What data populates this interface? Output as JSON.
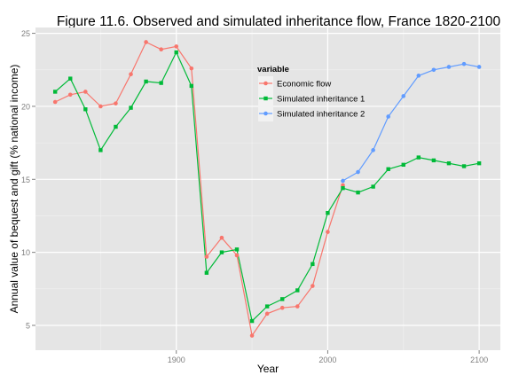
{
  "chart_data": {
    "type": "line",
    "title": "Figure 11.6. Observed and simulated inheritance flow, France 1820-2100",
    "xlabel": "Year",
    "ylabel": "Annual value of bequest and  gift (% national income)",
    "xlim": [
      1807,
      2114
    ],
    "ylim": [
      3.3,
      25.4
    ],
    "x_ticks": [
      1900,
      2000,
      2100
    ],
    "y_ticks": [
      5,
      10,
      15,
      20,
      25
    ],
    "grid": true,
    "background": "#e5e5e5",
    "legend": {
      "title": "variable",
      "position": "top-right"
    },
    "series": [
      {
        "name": "Economic flow",
        "color": "#f8766d",
        "shape": "circle",
        "x": [
          1820,
          1830,
          1840,
          1850,
          1860,
          1870,
          1880,
          1890,
          1900,
          1910,
          1920,
          1930,
          1940,
          1950,
          1960,
          1970,
          1980,
          1990,
          2000,
          2010
        ],
        "y": [
          20.3,
          20.8,
          21.0,
          20.0,
          20.2,
          22.2,
          24.4,
          23.9,
          24.1,
          22.6,
          9.7,
          11.0,
          9.8,
          4.3,
          5.8,
          6.2,
          6.3,
          7.7,
          11.4,
          14.6
        ]
      },
      {
        "name": "Simulated inheritance 1",
        "color": "#00ba38",
        "shape": "square",
        "x": [
          1820,
          1830,
          1840,
          1850,
          1860,
          1870,
          1880,
          1890,
          1900,
          1910,
          1920,
          1930,
          1940,
          1950,
          1960,
          1970,
          1980,
          1990,
          2000,
          2010,
          2020,
          2030,
          2040,
          2050,
          2060,
          2070,
          2080,
          2090,
          2100
        ],
        "y": [
          21.0,
          21.9,
          19.8,
          17.0,
          18.6,
          19.9,
          21.7,
          21.6,
          23.7,
          21.4,
          8.6,
          10.0,
          10.2,
          5.3,
          6.3,
          6.8,
          7.4,
          9.2,
          12.7,
          14.4,
          14.1,
          14.5,
          15.7,
          16.0,
          16.5,
          16.3,
          16.1,
          15.9,
          16.1
        ]
      },
      {
        "name": "Simulated inheritance 2",
        "color": "#619cff",
        "shape": "circle",
        "x": [
          2010,
          2020,
          2030,
          2040,
          2050,
          2060,
          2070,
          2080,
          2090,
          2100
        ],
        "y": [
          14.9,
          15.5,
          17.0,
          19.3,
          20.7,
          22.1,
          22.5,
          22.7,
          22.9,
          22.7
        ]
      }
    ]
  }
}
